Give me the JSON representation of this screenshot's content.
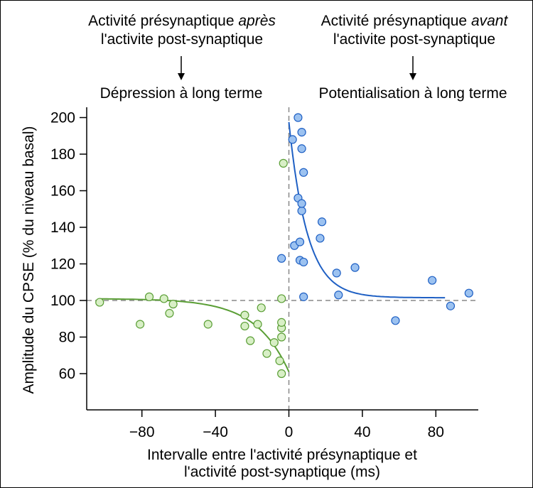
{
  "chart_data": {
    "type": "scatter",
    "annotations": {
      "left_line1_prefix": "Activité présynaptique ",
      "left_line1_emph": "après",
      "left_line2": "l'activite post-synaptique",
      "right_line1_prefix": "Activité présynaptique ",
      "right_line1_emph": "avant",
      "right_line2": "l'activite post-synaptique"
    },
    "region_labels": {
      "left": "Dépression à long terme",
      "right": "Potentialisation à long terme"
    },
    "xlabel_line1": "Intervalle entre l'activité présynaptique et",
    "xlabel_line2": "l'activité post-synaptique (ms)",
    "ylabel": "Amplitude du CPSE (% du niveau basal)",
    "xlim": [
      -110,
      110
    ],
    "ylim": [
      40,
      205
    ],
    "xticks": [
      -80,
      -40,
      0,
      40,
      80
    ],
    "xtick_labels": [
      "−80",
      "−40",
      "0",
      "40",
      "80"
    ],
    "yticks": [
      60,
      80,
      100,
      120,
      140,
      160,
      180,
      200
    ],
    "ytick_labels": [
      "60",
      "80",
      "100",
      "120",
      "140",
      "160",
      "180",
      "200"
    ],
    "reference_lines": {
      "x": 0,
      "y": 100
    },
    "colors": {
      "depression_line": "#5a9e35",
      "depression_fill": "#d8efc6",
      "potentiation_line": "#1f60c4",
      "potentiation_fill": "#9cc2f0",
      "reference": "#888888"
    },
    "series": [
      {
        "name": "Dépression à long terme",
        "x": [
          -103,
          -81,
          -76,
          -68,
          -65,
          -63,
          -44,
          -24,
          -24,
          -21,
          -17,
          -15,
          -12,
          -8,
          -5,
          -4,
          -4,
          -4,
          -4,
          -4,
          -3
        ],
        "y": [
          99,
          87,
          102,
          101,
          93,
          98,
          87,
          92,
          86,
          78,
          87,
          96,
          71,
          77,
          67,
          60,
          80,
          85,
          88,
          101,
          175
        ]
      },
      {
        "name": "Potentialisation à long terme",
        "x": [
          -4,
          2,
          3,
          5,
          5,
          6,
          6,
          7,
          7,
          7,
          7,
          8,
          8,
          8,
          17,
          18,
          26,
          27,
          36,
          58,
          78,
          88,
          98
        ],
        "y": [
          123,
          188,
          130,
          200,
          156,
          132,
          122,
          149,
          153,
          192,
          183,
          170,
          121,
          102,
          134,
          143,
          115,
          103,
          118,
          89,
          111,
          97,
          104
        ]
      }
    ],
    "fits": [
      {
        "name": "depression_fit",
        "x_from": -103,
        "x_to": 0,
        "baseline": 101,
        "amplitude": -40,
        "tau": 18,
        "direction": "left"
      },
      {
        "name": "potentiation_fit",
        "x_from": 0,
        "x_to": 85,
        "baseline": 101.5,
        "amplitude": 96,
        "tau": 10,
        "direction": "right"
      }
    ]
  }
}
